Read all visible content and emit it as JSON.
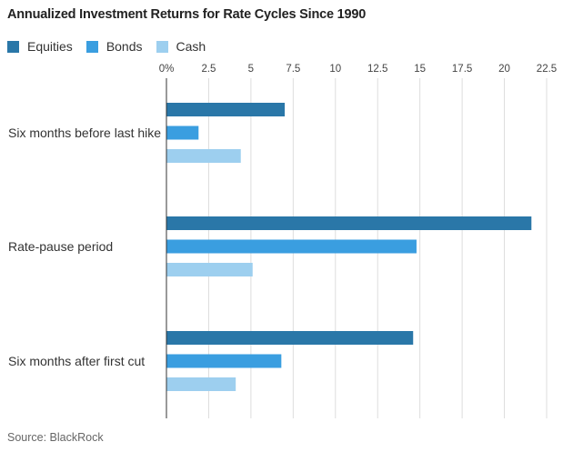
{
  "chart_data": {
    "type": "bar",
    "orientation": "horizontal",
    "title": "Annualized Investment Returns for Rate Cycles Since 1990",
    "source": "Source: BlackRock",
    "categories": [
      "Six months before last hike",
      "Rate-pause period",
      "Six months after first cut"
    ],
    "series": [
      {
        "name": "Equities",
        "color": "#2a77a8",
        "values": [
          7.0,
          21.6,
          14.6
        ]
      },
      {
        "name": "Bonds",
        "color": "#3a9ee0",
        "values": [
          1.9,
          14.8,
          6.8
        ]
      },
      {
        "name": "Cash",
        "color": "#9dcfef",
        "values": [
          4.4,
          5.1,
          4.1
        ]
      }
    ],
    "xlim": [
      0,
      22.5
    ],
    "xticks": [
      "0%",
      "2.5",
      "5",
      "7.5",
      "10",
      "12.5",
      "15",
      "17.5",
      "20",
      "22.5"
    ],
    "xtick_values": [
      0,
      2.5,
      5,
      7.5,
      10,
      12.5,
      15,
      17.5,
      20,
      22.5
    ],
    "grid": true,
    "legend_position": "top-left"
  }
}
